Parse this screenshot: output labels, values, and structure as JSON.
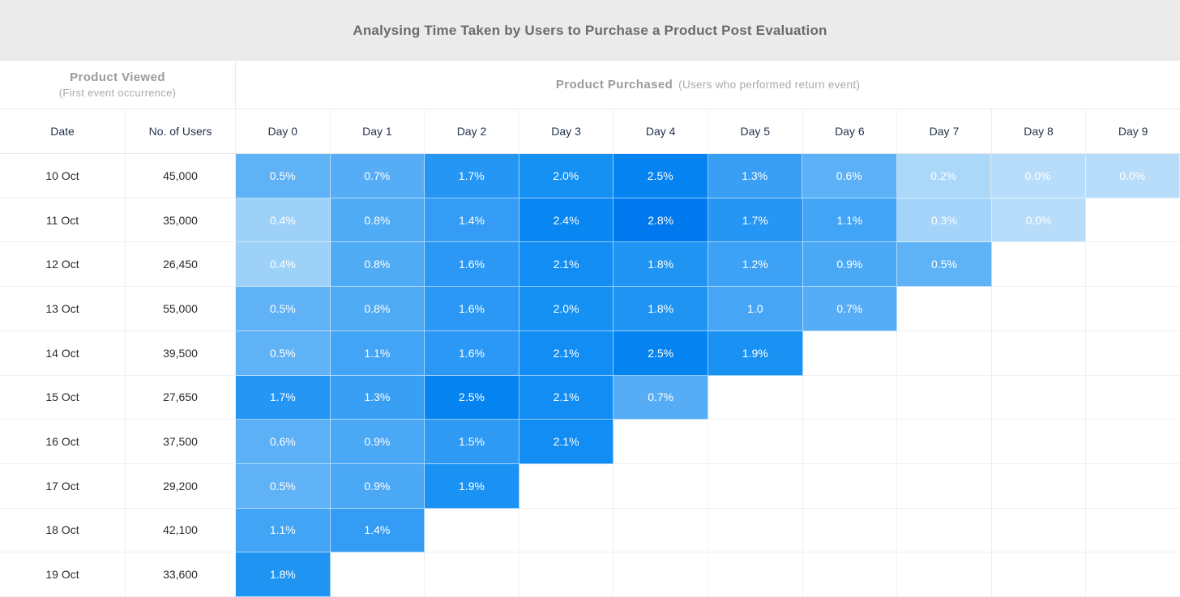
{
  "title": "Analysing Time Taken by Users to Purchase a Product Post Evaluation",
  "section_header": {
    "left_title": "Product Viewed",
    "left_subtitle": "(First event occurrence)",
    "right_title": "Product Purchased",
    "right_subtitle": "(Users who performed return event)"
  },
  "columns": [
    "Date",
    "No. of Users",
    "Day 0",
    "Day 1",
    "Day 2",
    "Day 3",
    "Day 4",
    "Day 5",
    "Day 6",
    "Day 7",
    "Day 8",
    "Day 9"
  ],
  "chart_data": {
    "type": "heatmap",
    "title": "Analysing Time Taken by Users to Purchase a Product Post Evaluation",
    "x_categories": [
      "Day 0",
      "Day 1",
      "Day 2",
      "Day 3",
      "Day 4",
      "Day 5",
      "Day 6",
      "Day 7",
      "Day 8",
      "Day 9"
    ],
    "value_unit": "percent of cohort users who purchased",
    "rows": [
      {
        "date": "10 Oct",
        "users": "45,000",
        "values": [
          0.5,
          0.7,
          1.7,
          2.0,
          2.5,
          1.3,
          0.6,
          0.2,
          0.0,
          0.0
        ],
        "labels": [
          "0.5%",
          "0.7%",
          "1.7%",
          "2.0%",
          "2.5%",
          "1.3%",
          "0.6%",
          "0.2%",
          "0.0%",
          "0.0%"
        ]
      },
      {
        "date": "11 Oct",
        "users": "35,000",
        "values": [
          0.4,
          0.8,
          1.4,
          2.4,
          2.8,
          1.7,
          1.1,
          0.3,
          0.0
        ],
        "labels": [
          "0.4%",
          "0.8%",
          "1.4%",
          "2.4%",
          "2.8%",
          "1.7%",
          "1.1%",
          "0.3%",
          "0.0%"
        ]
      },
      {
        "date": "12 Oct",
        "users": "26,450",
        "values": [
          0.4,
          0.8,
          1.6,
          2.1,
          1.8,
          1.2,
          0.9,
          0.5
        ],
        "labels": [
          "0.4%",
          "0.8%",
          "1.6%",
          "2.1%",
          "1.8%",
          "1.2%",
          "0.9%",
          "0.5%"
        ]
      },
      {
        "date": "13 Oct",
        "users": "55,000",
        "values": [
          0.5,
          0.8,
          1.6,
          2.0,
          1.8,
          1.0,
          0.7
        ],
        "labels": [
          "0.5%",
          "0.8%",
          "1.6%",
          "2.0%",
          "1.8%",
          "1.0",
          "0.7%"
        ]
      },
      {
        "date": "14 Oct",
        "users": "39,500",
        "values": [
          0.5,
          1.1,
          1.6,
          2.1,
          2.5,
          1.9
        ],
        "labels": [
          "0.5%",
          "1.1%",
          "1.6%",
          "2.1%",
          "2.5%",
          "1.9%"
        ]
      },
      {
        "date": "15 Oct",
        "users": "27,650",
        "values": [
          1.7,
          1.3,
          2.5,
          2.1,
          0.7
        ],
        "labels": [
          "1.7%",
          "1.3%",
          "2.5%",
          "2.1%",
          "0.7%"
        ]
      },
      {
        "date": "16 Oct",
        "users": "37,500",
        "values": [
          0.6,
          0.9,
          1.5,
          2.1
        ],
        "labels": [
          "0.6%",
          "0.9%",
          "1.5%",
          "2.1%"
        ]
      },
      {
        "date": "17 Oct",
        "users": "29,200",
        "values": [
          0.5,
          0.9,
          1.9
        ],
        "labels": [
          "0.5%",
          "0.9%",
          "1.9%"
        ]
      },
      {
        "date": "18 Oct",
        "users": "42,100",
        "values": [
          1.1,
          1.4
        ],
        "labels": [
          "1.1%",
          "1.4%"
        ]
      },
      {
        "date": "19 Oct",
        "users": "33,600",
        "values": [
          1.8
        ],
        "labels": [
          "1.8%"
        ]
      }
    ],
    "color_scale": [
      {
        "value": 0.0,
        "color": "#b7ddfa"
      },
      {
        "value": 0.4,
        "color": "#9ed1f8"
      },
      {
        "value": 0.5,
        "color": "#60b2f6"
      },
      {
        "value": 1.0,
        "color": "#46a6f5"
      },
      {
        "value": 1.5,
        "color": "#2f9af4"
      },
      {
        "value": 2.0,
        "color": "#1590f3"
      },
      {
        "value": 2.5,
        "color": "#0583f1"
      },
      {
        "value": 2.8,
        "color": "#0078ee"
      }
    ],
    "cell_text_color": "#ffffff"
  },
  "colors": {
    "titlebar_bg": "#ebebeb",
    "title_text": "#6b6b6b",
    "section_text": "#9b9b9b",
    "header_text": "#24344b",
    "grid_line": "#f0f0f0"
  }
}
